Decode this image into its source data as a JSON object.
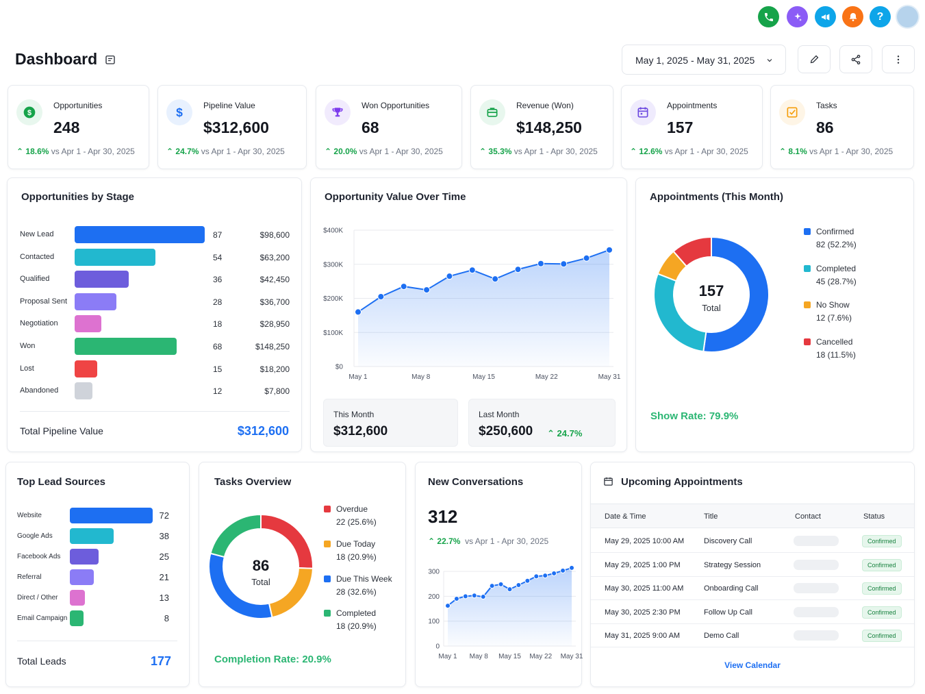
{
  "header": {
    "title": "Dashboard",
    "date_range": "May 1, 2025 - May 31, 2025"
  },
  "topbar": {
    "icons": [
      {
        "name": "phone-icon",
        "color": "#16a34a"
      },
      {
        "name": "sparkle-icon",
        "color": "#8b5cf6"
      },
      {
        "name": "megaphone-icon",
        "color": "#0ea5e9"
      },
      {
        "name": "bell-icon",
        "color": "#f97316"
      },
      {
        "name": "help-icon",
        "color": "#0ea5e9"
      },
      {
        "name": "avatar",
        "color": "#9ec6e6"
      }
    ]
  },
  "kpis": [
    {
      "title": "Opportunities",
      "value": "248",
      "change": "18.6%",
      "compare": "vs Apr 1 - Apr 30, 2025",
      "icon": "dollar-circle-icon",
      "color": "#16a34a",
      "bg": "#e8f7ee"
    },
    {
      "title": "Pipeline Value",
      "value": "$312,600",
      "change": "24.7%",
      "compare": "vs Apr 1 - Apr 30, 2025",
      "icon": "dollar-icon",
      "color": "#1d6ff2",
      "bg": "#e8f1fe"
    },
    {
      "title": "Won Opportunities",
      "value": "68",
      "change": "20.0%",
      "compare": "vs Apr 1 - Apr 30, 2025",
      "icon": "trophy-icon",
      "color": "#7c3aed",
      "bg": "#f1ebfd"
    },
    {
      "title": "Revenue (Won)",
      "value": "$148,250",
      "change": "35.3%",
      "compare": "vs Apr 1 - Apr 30, 2025",
      "icon": "briefcase-icon",
      "color": "#16a34a",
      "bg": "#e8f7ee"
    },
    {
      "title": "Appointments",
      "value": "157",
      "change": "12.6%",
      "compare": "vs Apr 1 - Apr 30, 2025",
      "icon": "calendar-icon",
      "color": "#6d4ae0",
      "bg": "#efebfd"
    },
    {
      "title": "Tasks",
      "value": "86",
      "change": "8.1%",
      "compare": "vs Apr 1 - Apr 30, 2025",
      "icon": "checkbox-icon",
      "color": "#f59e0b",
      "bg": "#fef5e6"
    }
  ],
  "stages": {
    "title": "Opportunities by Stage",
    "rows": [
      {
        "label": "New Lead",
        "count": 87,
        "value": "$98,600",
        "color": "#1d6ff2"
      },
      {
        "label": "Contacted",
        "count": 54,
        "value": "$63,200",
        "color": "#22b8cf"
      },
      {
        "label": "Qualified",
        "count": 36,
        "value": "$42,450",
        "color": "#6d5ddc"
      },
      {
        "label": "Proposal Sent",
        "count": 28,
        "value": "$36,700",
        "color": "#8b7cf6"
      },
      {
        "label": "Negotiation",
        "count": 18,
        "value": "$28,950",
        "color": "#dd72d0"
      },
      {
        "label": "Won",
        "count": 68,
        "value": "$148,250",
        "color": "#2bb673"
      },
      {
        "label": "Lost",
        "count": 15,
        "value": "$18,200",
        "color": "#ef4444"
      },
      {
        "label": "Abandoned",
        "count": 12,
        "value": "$7,800",
        "color": "#cfd3da"
      }
    ],
    "total_label": "Total Pipeline Value",
    "total_value": "$312,600"
  },
  "value_over_time": {
    "title": "Opportunity Value Over Time",
    "this_month_label": "This Month",
    "this_month_value": "$312,600",
    "last_month_label": "Last Month",
    "last_month_value": "$250,600",
    "change": "24.7%"
  },
  "appointments": {
    "title": "Appointments (This Month)",
    "center_value": "157",
    "center_label": "Total",
    "legend": [
      {
        "label": "Confirmed",
        "detail": "82 (52.2%)",
        "value": 82,
        "color": "#1d6ff2"
      },
      {
        "label": "Completed",
        "detail": "45 (28.7%)",
        "value": 45,
        "color": "#22b8cf"
      },
      {
        "label": "No Show",
        "detail": "12 (7.6%)",
        "value": 12,
        "color": "#f5a623"
      },
      {
        "label": "Cancelled",
        "detail": "18 (11.5%)",
        "value": 18,
        "color": "#e5393f"
      }
    ],
    "show_rate": "Show Rate: 79.9%"
  },
  "lead_sources": {
    "title": "Top Lead Sources",
    "rows": [
      {
        "label": "Website",
        "count": 72,
        "color": "#1d6ff2"
      },
      {
        "label": "Google Ads",
        "count": 38,
        "color": "#22b8cf"
      },
      {
        "label": "Facebook Ads",
        "count": 25,
        "color": "#6d5ddc"
      },
      {
        "label": "Referral",
        "count": 21,
        "color": "#8b7cf6"
      },
      {
        "label": "Direct / Other",
        "count": 13,
        "color": "#dd72d0"
      },
      {
        "label": "Email Campaign",
        "count": 8,
        "color": "#2bb673"
      }
    ],
    "total_label": "Total Leads",
    "total_value": "177"
  },
  "tasks": {
    "title": "Tasks Overview",
    "center_value": "86",
    "center_label": "Total",
    "legend": [
      {
        "label": "Overdue",
        "detail": "22 (25.6%)",
        "value": 22,
        "color": "#e5393f"
      },
      {
        "label": "Due Today",
        "detail": "18 (20.9%)",
        "value": 18,
        "color": "#f5a623"
      },
      {
        "label": "Due This Week",
        "detail": "28 (32.6%)",
        "value": 28,
        "color": "#1d6ff2"
      },
      {
        "label": "Completed",
        "detail": "18 (20.9%)",
        "value": 18,
        "color": "#2bb673"
      }
    ],
    "completion_rate": "Completion Rate: 20.9%"
  },
  "conversations": {
    "title": "New Conversations",
    "value": "312",
    "change": "22.7%",
    "compare": "vs Apr 1 - Apr 30, 2025"
  },
  "upcoming": {
    "title": "Upcoming Appointments",
    "columns": [
      "Date & Time",
      "Title",
      "Contact",
      "Status"
    ],
    "rows": [
      {
        "datetime": "May 29, 2025 10:00 AM",
        "title": "Discovery Call",
        "status": "Confirmed"
      },
      {
        "datetime": "May 29, 2025 1:00 PM",
        "title": "Strategy Session",
        "status": "Confirmed"
      },
      {
        "datetime": "May 30, 2025 11:00 AM",
        "title": "Onboarding Call",
        "status": "Confirmed"
      },
      {
        "datetime": "May 30, 2025 2:30 PM",
        "title": "Follow Up Call",
        "status": "Confirmed"
      },
      {
        "datetime": "May 31, 2025 9:00 AM",
        "title": "Demo Call",
        "status": "Confirmed"
      }
    ],
    "view_calendar": "View Calendar"
  },
  "chart_data": [
    {
      "type": "line",
      "title": "Opportunity Value Over Time",
      "x_ticks": [
        "May 1",
        "May 8",
        "May 15",
        "May 22",
        "May 31"
      ],
      "y_ticks": [
        "$0",
        "$100K",
        "$200K",
        "$300K",
        "$400K"
      ],
      "ylim": [
        0,
        400000
      ],
      "series": [
        {
          "values": [
            160000,
            205000,
            235000,
            225000,
            265000,
            283000,
            257000,
            285000,
            302000,
            301000,
            318000,
            342000
          ]
        }
      ],
      "grid": true,
      "color": "#1d6ff2"
    },
    {
      "type": "pie",
      "title": "Appointments (This Month)",
      "categories": [
        "Confirmed",
        "Completed",
        "No Show",
        "Cancelled"
      ],
      "values": [
        82,
        45,
        12,
        18
      ]
    },
    {
      "type": "pie",
      "title": "Tasks Overview",
      "categories": [
        "Overdue",
        "Due Today",
        "Due This Week",
        "Completed"
      ],
      "values": [
        22,
        18,
        28,
        18
      ]
    },
    {
      "type": "line",
      "title": "New Conversations",
      "x_ticks": [
        "May 1",
        "May 8",
        "May 15",
        "May 22",
        "May 31"
      ],
      "y_ticks": [
        "0",
        "100",
        "200",
        "300"
      ],
      "ylim": [
        0,
        300
      ],
      "series": [
        {
          "values": [
            162,
            190,
            200,
            203,
            198,
            242,
            248,
            228,
            245,
            262,
            280,
            283,
            292,
            303,
            314
          ]
        }
      ],
      "grid": true,
      "color": "#1d6ff2"
    }
  ]
}
